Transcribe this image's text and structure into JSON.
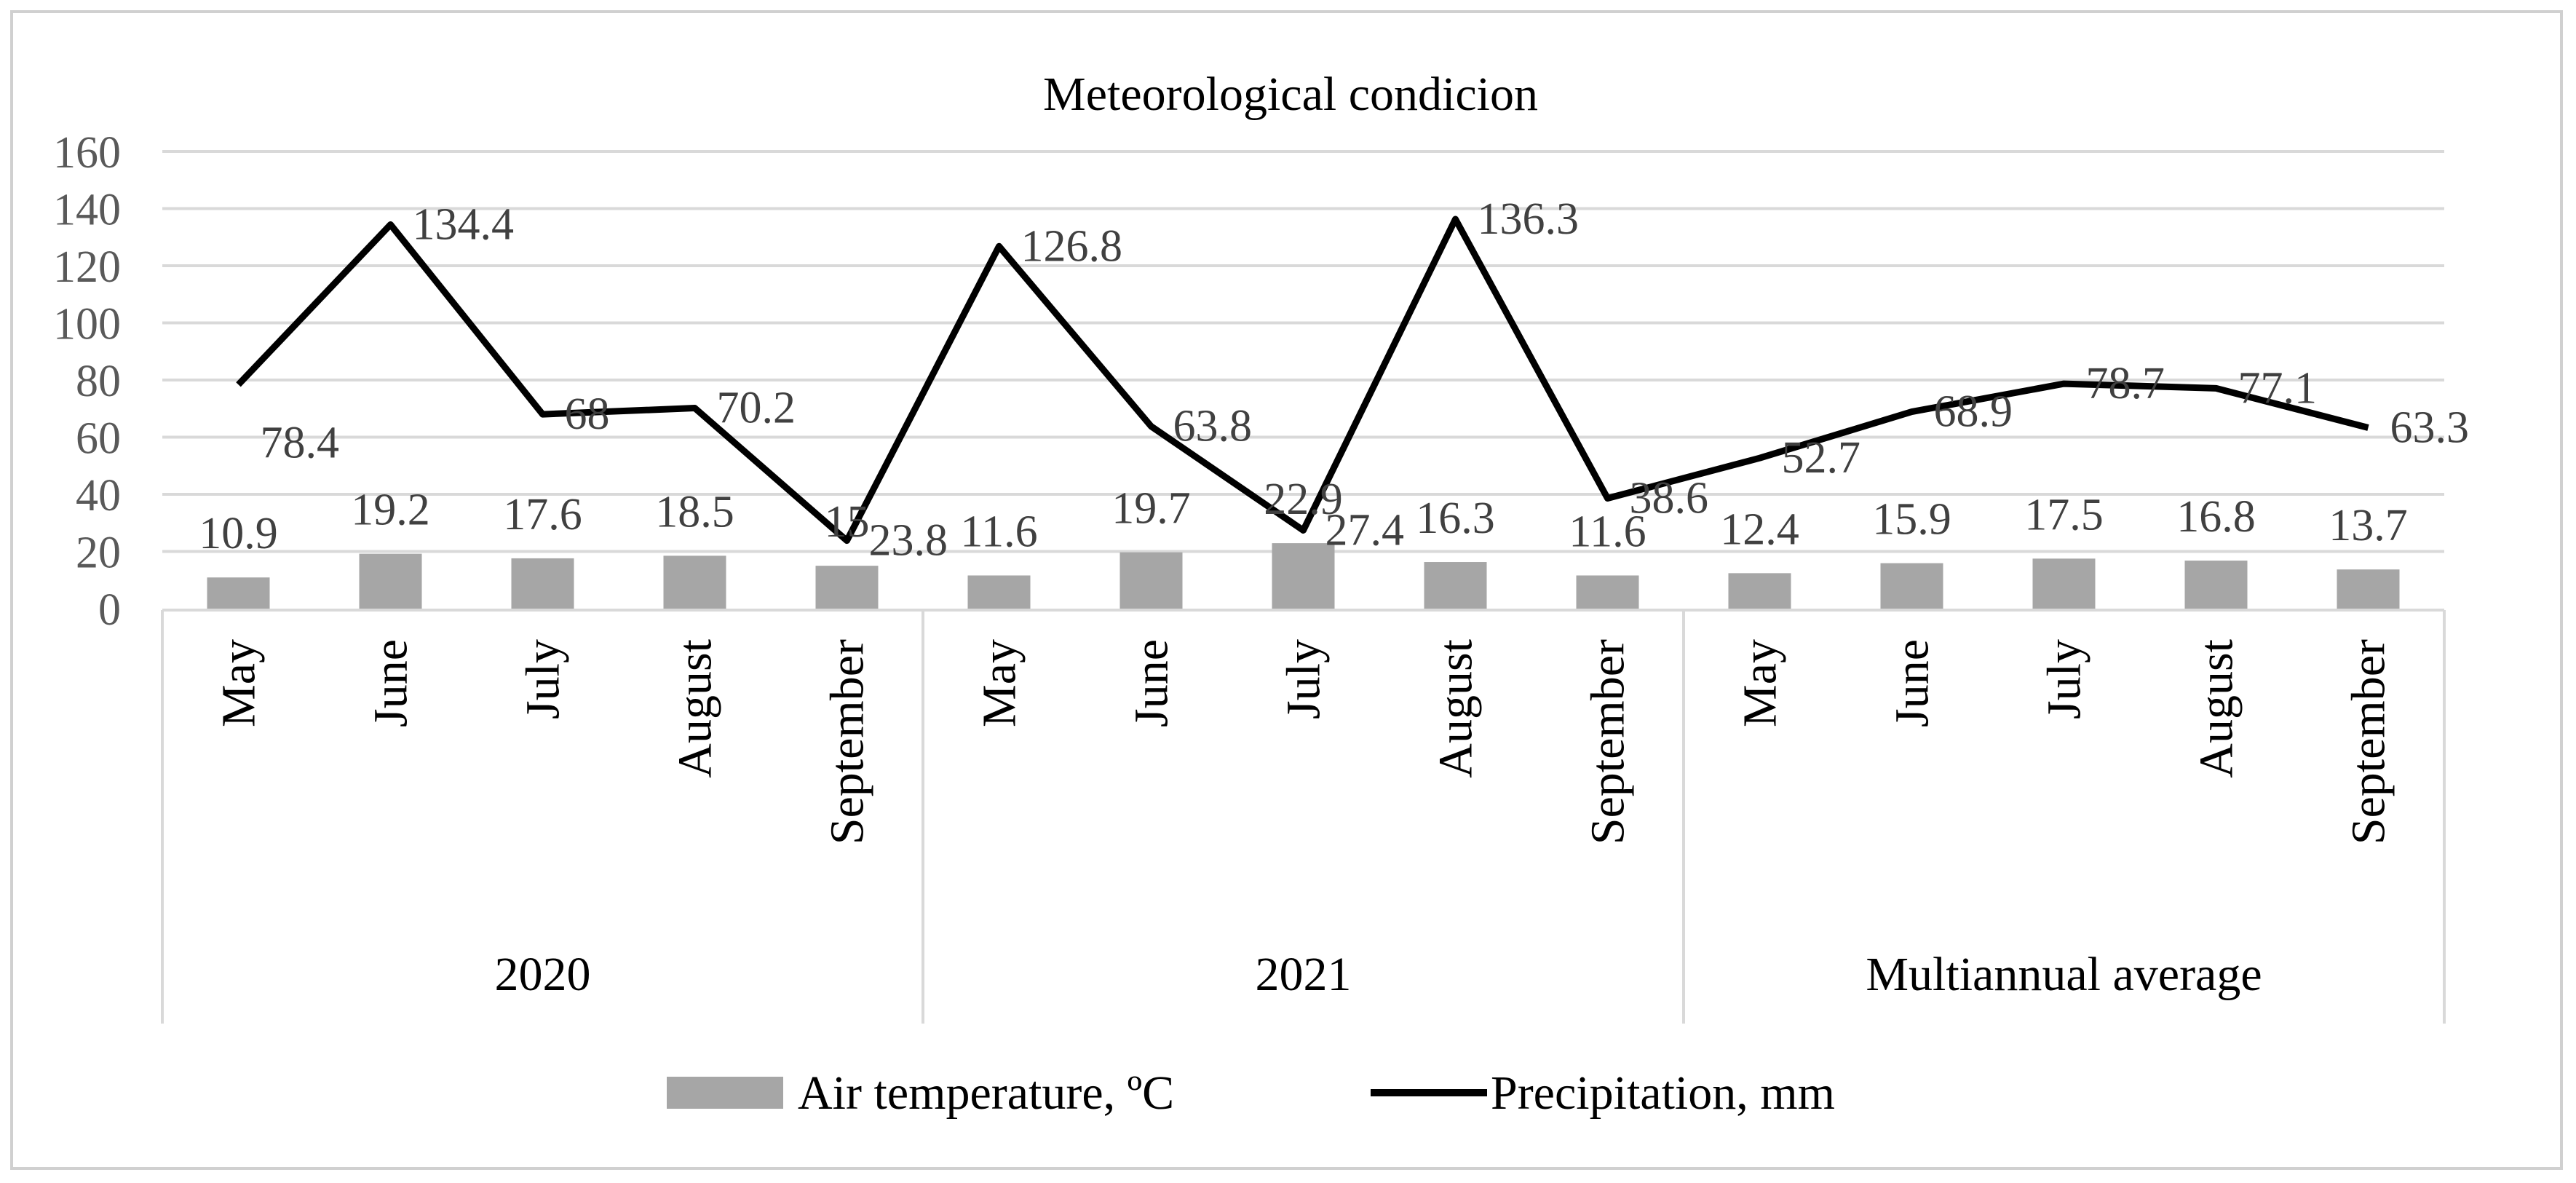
{
  "chart_data": {
    "type": "bar",
    "title": "Meteorological condicion",
    "ylim": [
      0,
      160
    ],
    "yticks": [
      "0",
      "20",
      "40",
      "60",
      "80",
      "100",
      "120",
      "140",
      "160"
    ],
    "grid": true,
    "legend_position": "bottom",
    "groups": [
      {
        "label": "2020",
        "categories": [
          "May",
          "June",
          "July",
          "August",
          "September"
        ]
      },
      {
        "label": "2021",
        "categories": [
          "May",
          "June",
          "July",
          "August",
          "September"
        ]
      },
      {
        "label": "Multiannual average",
        "categories": [
          "May",
          "June",
          "July",
          "August",
          "September"
        ]
      }
    ],
    "series": [
      {
        "name": "Air temperature, ºC",
        "type": "bar",
        "color": "#a6a6a6",
        "values": [
          10.9,
          19.2,
          17.6,
          18.5,
          15,
          11.6,
          19.7,
          22.9,
          16.3,
          11.6,
          12.4,
          15.9,
          17.5,
          16.8,
          13.7
        ],
        "labels": [
          "10.9",
          "19.2",
          "17.6",
          "18.5",
          "15",
          "11.6",
          "19.7",
          "22.9",
          "16.3",
          "11.6",
          "12.4",
          "15.9",
          "17.5",
          "16.8",
          "13.7"
        ]
      },
      {
        "name": "Precipitation, mm",
        "type": "line",
        "color": "#000000",
        "values": [
          78.4,
          134.4,
          68,
          70.2,
          23.8,
          126.8,
          63.8,
          27.4,
          136.3,
          38.6,
          52.7,
          68.9,
          78.7,
          77.1,
          63.3
        ],
        "labels": [
          "78.4",
          "134.4",
          "68",
          "70.2",
          "23.8",
          "126.8",
          "63.8",
          "27.4",
          "136.3",
          "38.6",
          "52.7",
          "68.9",
          "78.7",
          "77.1",
          "63.3"
        ]
      }
    ]
  }
}
